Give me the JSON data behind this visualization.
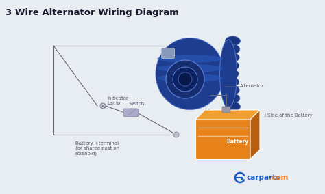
{
  "title": "3 Wire Alternator Wiring Diagram",
  "title_fontsize": 9.5,
  "title_fontweight": "bold",
  "bg_color": "#e8edf2",
  "alternator_label": "Alternator",
  "battery_label": "Battery",
  "indicator_label": "Indicator\nLamp",
  "switch_label": "Switch",
  "battery_terminal_label": "Battery +terminal\n(or shared post on\nsolenoid)",
  "side_battery_label": "+Side of the Battery",
  "carparts_text": "carparts",
  "carparts_com": ".com",
  "label_color": "#555566",
  "label_fontsize": 5.0,
  "alt_body_color": "#1e3d8f",
  "alt_body_dark": "#162d70",
  "alt_highlight": "#2a5abf",
  "alt_edge": "#5577cc",
  "battery_color": "#e8821a",
  "battery_highlight": "#f09a35",
  "battery_dark": "#b86010",
  "battery_top": "#f0a030",
  "wire_color": "#666677",
  "wire_lw": 0.8,
  "carparts_blue": "#1a5abf",
  "carparts_orange": "#f07820",
  "fin_color": "#1a3580",
  "fin_edge": "#4466aa"
}
